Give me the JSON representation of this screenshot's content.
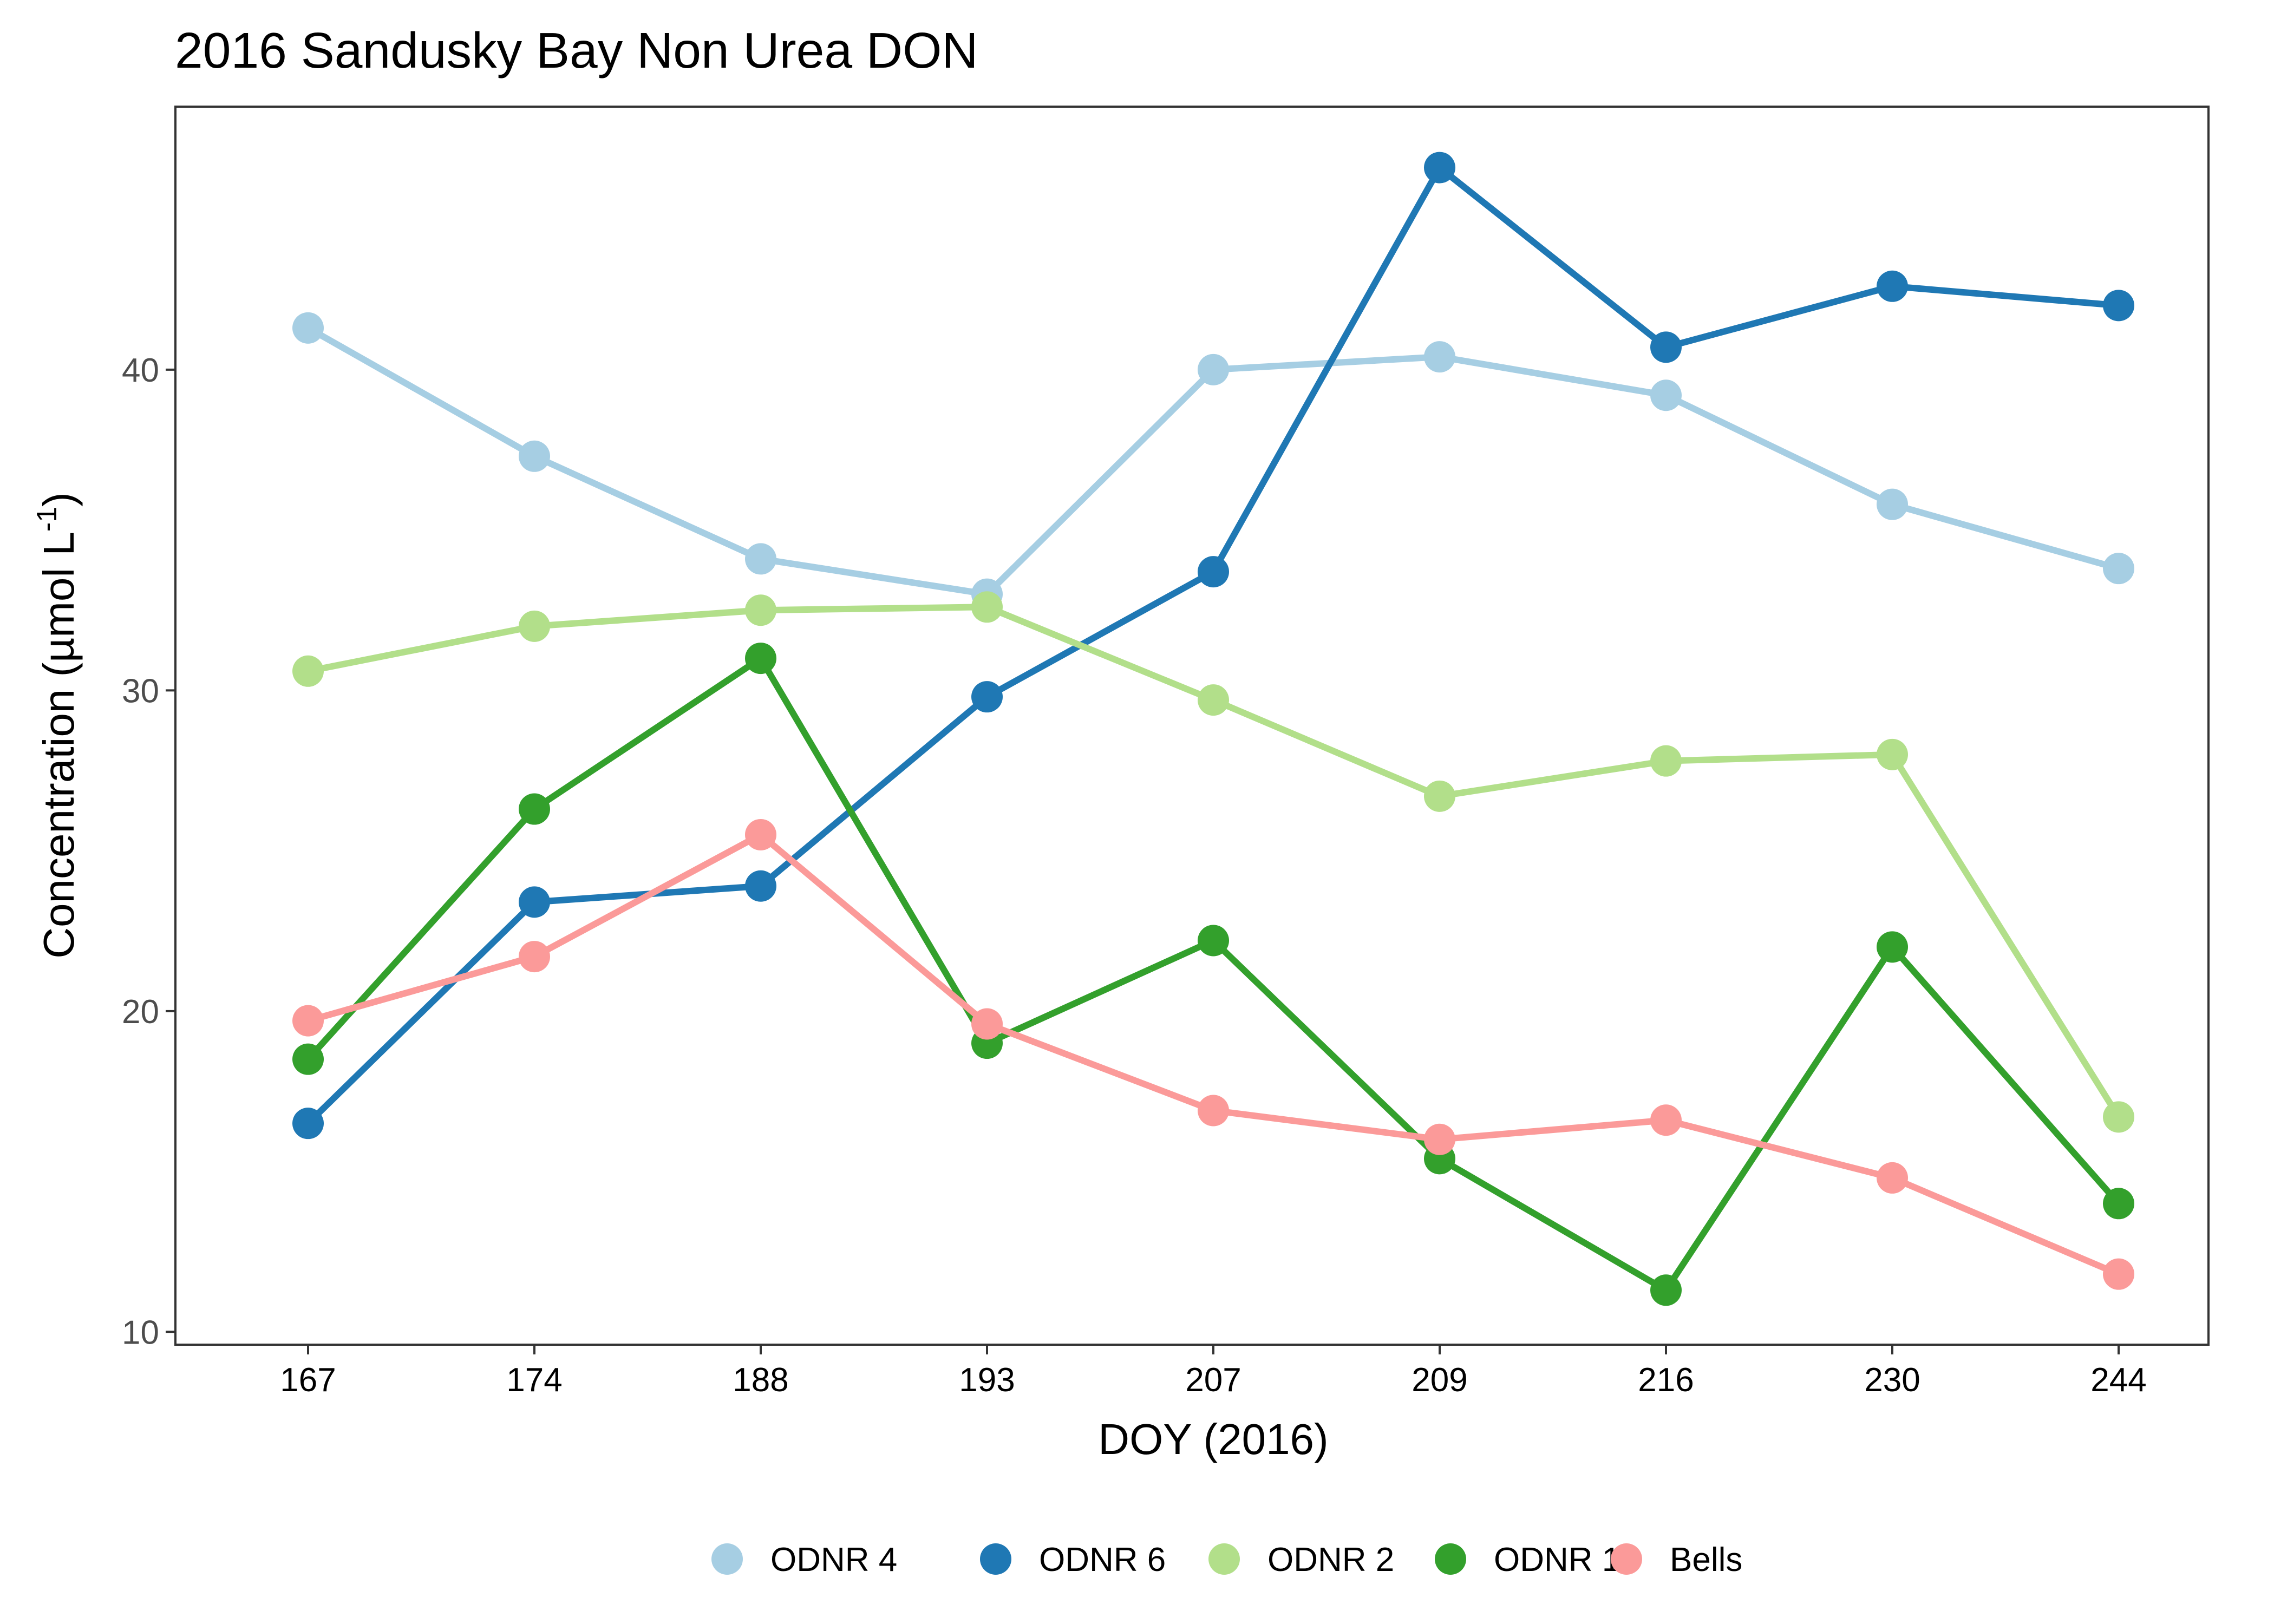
{
  "chart_data": {
    "type": "line",
    "title": "2016 Sandusky Bay Non Urea DON",
    "xlabel": "DOY (2016)",
    "ylabel": "Concentration (µmol L",
    "ylabel_superscript": "-1",
    "ylabel_close": ")",
    "x": [
      "167",
      "174",
      "188",
      "193",
      "207",
      "209",
      "216",
      "230",
      "244"
    ],
    "yticks": [
      10,
      20,
      30,
      40
    ],
    "ylim": [
      9.6,
      48.2
    ],
    "grid": false,
    "legend_position": "bottom",
    "series": [
      {
        "name": "ODNR 4",
        "color": "#a6cee3",
        "values": [
          41.3,
          37.3,
          34.1,
          33.0,
          40.0,
          40.4,
          39.2,
          35.8,
          33.8
        ]
      },
      {
        "name": "ODNR 6",
        "color": "#1f78b4",
        "values": [
          16.5,
          23.4,
          23.9,
          29.8,
          33.7,
          46.3,
          40.7,
          42.6,
          42.0
        ]
      },
      {
        "name": "ODNR 2",
        "color": "#b2df8a",
        "values": [
          30.6,
          32.0,
          32.5,
          32.6,
          29.7,
          26.7,
          27.8,
          28.0,
          16.7
        ]
      },
      {
        "name": "ODNR 1",
        "color": "#33a02c",
        "values": [
          18.5,
          26.3,
          31.0,
          19.0,
          22.2,
          15.4,
          11.3,
          22.0,
          14.0
        ]
      },
      {
        "name": "Bells",
        "color": "#fb9a99",
        "values": [
          19.7,
          21.7,
          25.5,
          19.6,
          16.9,
          16.0,
          16.6,
          14.8,
          11.8
        ]
      }
    ]
  }
}
